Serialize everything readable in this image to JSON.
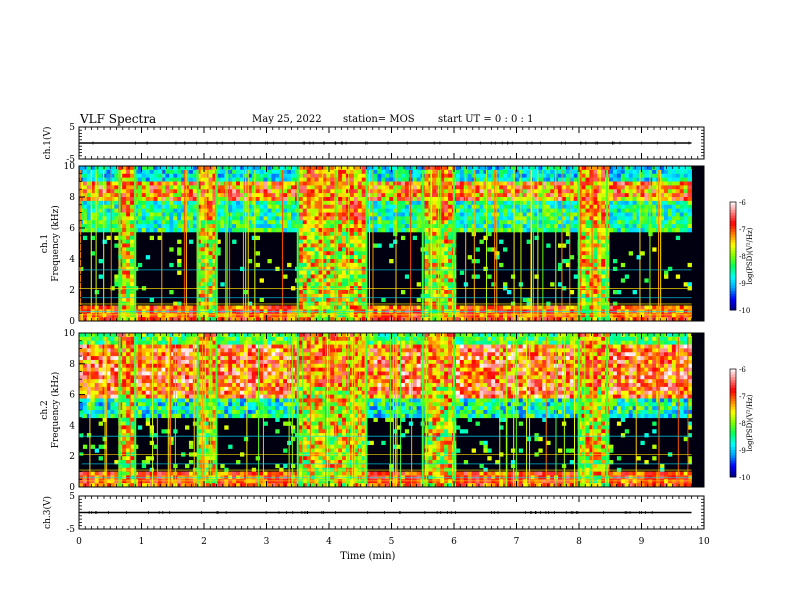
{
  "header": {
    "title": "VLF Spectra",
    "date": "May 25, 2022",
    "station": "station= MOS",
    "start_ut": "start  UT =   0 : 0  : 1"
  },
  "colors": {
    "background": "#ffffff",
    "frame": "#000000",
    "spectrogram_floor": "#000010",
    "colormap": [
      "#000080",
      "#0000ff",
      "#00a0ff",
      "#00ffff",
      "#00ff60",
      "#80ff00",
      "#ffff00",
      "#ff8000",
      "#ff0000",
      "#ff8080",
      "#ffffff"
    ]
  },
  "chart_data": [
    {
      "type": "line",
      "panel": "ch1-waveform",
      "ylabel": "ch.1(V)",
      "ylim": [
        -5,
        5
      ],
      "yticks": [
        "5",
        "-5"
      ],
      "series": [
        {
          "x": [
            0,
            9.8
          ],
          "values": [
            0,
            0
          ]
        }
      ]
    },
    {
      "type": "heatmap",
      "panel": "ch1-spectrogram",
      "ylabel_line1": "ch.1",
      "ylabel_line2": "Frequency (kHz)",
      "ylim": [
        0,
        10
      ],
      "yticks": [
        "0",
        "2",
        "4",
        "6",
        "8",
        "10"
      ],
      "colorbar": {
        "label": "log(PSD)(V²/Hz)",
        "range": [
          -10,
          -6
        ],
        "ticks": [
          "-6",
          "-7",
          "-8",
          "-9",
          "-10"
        ]
      },
      "band_intervals_min": [
        [
          0.65,
          0.9
        ],
        [
          1.9,
          2.2
        ],
        [
          3.5,
          4.6
        ],
        [
          5.5,
          6.0
        ],
        [
          8.0,
          8.45
        ]
      ]
    },
    {
      "type": "heatmap",
      "panel": "ch2-spectrogram",
      "ylabel_line1": "ch.2",
      "ylabel_line2": "Frequency (kHz)",
      "ylim": [
        0,
        10
      ],
      "yticks": [
        "0",
        "2",
        "4",
        "6",
        "8",
        "10"
      ],
      "colorbar": {
        "label": "log(PSD)(V²/Hz)",
        "range": [
          -10,
          -6
        ],
        "ticks": [
          "-6",
          "-7",
          "-8",
          "-9",
          "-10"
        ]
      },
      "band_intervals_min": [
        [
          0.65,
          0.9
        ],
        [
          1.9,
          2.2
        ],
        [
          3.5,
          4.6
        ],
        [
          5.5,
          6.0
        ],
        [
          8.0,
          8.45
        ]
      ]
    },
    {
      "type": "line",
      "panel": "ch3-waveform",
      "ylabel": "ch.3(V)",
      "ylim": [
        -5,
        5
      ],
      "yticks": [
        "5",
        "-5"
      ],
      "series": [
        {
          "x": [
            0,
            9.8
          ],
          "values": [
            0,
            0
          ]
        }
      ]
    }
  ],
  "xaxis": {
    "label": "Time  (min)",
    "range": [
      0,
      10
    ],
    "ticks": [
      "0",
      "1",
      "2",
      "3",
      "4",
      "5",
      "6",
      "7",
      "8",
      "9",
      "10"
    ]
  }
}
